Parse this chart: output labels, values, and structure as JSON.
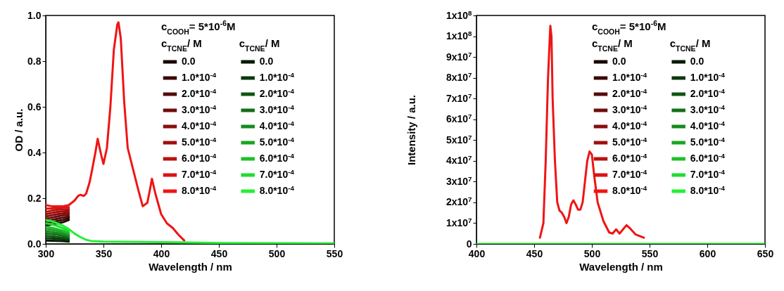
{
  "chart_data": [
    {
      "type": "line",
      "xlabel": "Wavelength / nm",
      "ylabel": "OD / a.u.",
      "legend_title": "c$_{TCNE}$/ M",
      "legend": "top right",
      "annotations": [
        "c$_{COOH}$= 5*10$^{-6}$M"
      ],
      "xlim": [
        300,
        550
      ],
      "xticks": [
        300,
        350,
        400,
        450,
        500,
        550
      ],
      "ylim": [
        0,
        1
      ],
      "yticks": [
        {
          "value": 0,
          "label": "0.0"
        },
        0.2,
        0.4,
        0.6,
        0.8,
        {
          "value": 1,
          "label": "1.0"
        }
      ],
      "x": [
        300,
        305,
        310,
        315,
        320,
        325,
        328,
        330,
        333,
        335,
        338,
        340,
        343,
        345,
        348,
        350,
        353,
        356,
        359,
        362,
        363,
        365,
        368,
        371,
        375,
        380,
        384,
        388,
        390,
        392,
        395,
        400,
        405,
        410,
        415,
        420
      ],
      "series": [
        {
          "name": "0.0",
          "color": "#1a0505",
          "x": [
            300,
            305,
            310,
            315,
            320
          ],
          "values": [
            0.08,
            0.085,
            0.09,
            0.095,
            0.105
          ]
        },
        {
          "name": "1.0*10$^{-4}$",
          "color": "#3a0808",
          "x": [
            300,
            305,
            310,
            315,
            320
          ],
          "values": [
            0.09,
            0.095,
            0.1,
            0.105,
            0.113
          ]
        },
        {
          "name": "2.0*10$^{-4}$",
          "color": "#550a0a",
          "x": [
            300,
            305,
            310,
            315,
            320
          ],
          "values": [
            0.1,
            0.105,
            0.11,
            0.115,
            0.12
          ]
        },
        {
          "name": "3.0*10$^{-4}$",
          "color": "#6e0c0c",
          "x": [
            300,
            305,
            310,
            315,
            320
          ],
          "values": [
            0.11,
            0.115,
            0.12,
            0.125,
            0.128
          ]
        },
        {
          "name": "4.0*10$^{-4}$",
          "color": "#880e0e",
          "x": [
            300,
            305,
            310,
            315,
            320
          ],
          "values": [
            0.12,
            0.125,
            0.13,
            0.133,
            0.136
          ]
        },
        {
          "name": "5.0*10$^{-4}$",
          "color": "#a00f0f",
          "x": [
            300,
            305,
            310,
            315,
            320
          ],
          "values": [
            0.13,
            0.135,
            0.14,
            0.142,
            0.144
          ]
        },
        {
          "name": "6.0*10$^{-4}$",
          "color": "#bb1010",
          "x": [
            300,
            305,
            310,
            315,
            320
          ],
          "values": [
            0.14,
            0.145,
            0.15,
            0.151,
            0.152
          ]
        },
        {
          "name": "7.0*10$^{-4}$",
          "color": "#d81212",
          "x": [
            300,
            305,
            310,
            315,
            320
          ],
          "values": [
            0.155,
            0.155,
            0.157,
            0.159,
            0.161
          ]
        },
        {
          "name": "8.0*10$^{-4}$",
          "color": "#f01414",
          "values": [
            0.17,
            0.165,
            0.165,
            0.165,
            0.17,
            0.19,
            0.21,
            0.215,
            0.21,
            0.22,
            0.27,
            0.32,
            0.4,
            0.46,
            0.39,
            0.35,
            0.42,
            0.6,
            0.85,
            0.96,
            0.97,
            0.9,
            0.62,
            0.42,
            0.34,
            0.24,
            0.165,
            0.18,
            0.23,
            0.285,
            0.22,
            0.13,
            0.09,
            0.07,
            0.04,
            0.015
          ]
        },
        {
          "name": "0.0",
          "color": "#051a05",
          "x": [
            300,
            305,
            310,
            315,
            320
          ],
          "values": [
            0.015,
            0.014,
            0.013,
            0.012,
            0.01
          ]
        },
        {
          "name": "1.0*10$^{-4}$",
          "color": "#0a380c",
          "x": [
            300,
            305,
            310,
            315,
            320
          ],
          "values": [
            0.025,
            0.024,
            0.022,
            0.02,
            0.017
          ]
        },
        {
          "name": "2.0*10$^{-4}$",
          "color": "#0d5512",
          "x": [
            300,
            305,
            310,
            315,
            320
          ],
          "values": [
            0.035,
            0.033,
            0.03,
            0.027,
            0.023
          ]
        },
        {
          "name": "3.0*10$^{-4}$",
          "color": "#127018",
          "x": [
            300,
            305,
            310,
            315,
            320
          ],
          "values": [
            0.045,
            0.043,
            0.04,
            0.035,
            0.03
          ]
        },
        {
          "name": "4.0*10$^{-4}$",
          "color": "#168a1e",
          "x": [
            300,
            305,
            310,
            315,
            320
          ],
          "values": [
            0.055,
            0.052,
            0.048,
            0.043,
            0.036
          ]
        },
        {
          "name": "5.0*10$^{-4}$",
          "color": "#1aa524",
          "x": [
            300,
            305,
            310,
            315,
            320
          ],
          "values": [
            0.065,
            0.062,
            0.057,
            0.05,
            0.042
          ]
        },
        {
          "name": "6.0*10$^{-4}$",
          "color": "#1cc12a",
          "x": [
            300,
            305,
            310,
            315,
            320
          ],
          "values": [
            0.075,
            0.071,
            0.065,
            0.058,
            0.048
          ]
        },
        {
          "name": "7.0*10$^{-4}$",
          "color": "#1edc30",
          "x": [
            300,
            305,
            310,
            315,
            320
          ],
          "values": [
            0.09,
            0.086,
            0.078,
            0.069,
            0.056
          ]
        },
        {
          "name": "8.0*10$^{-4}$",
          "color": "#22f035",
          "x": [
            300,
            305,
            310,
            315,
            320,
            325,
            330,
            335,
            340,
            350,
            400,
            450,
            550
          ],
          "values": [
            0.105,
            0.1,
            0.09,
            0.08,
            0.065,
            0.045,
            0.03,
            0.018,
            0.012,
            0.01,
            0.008,
            0.004,
            0.002
          ]
        }
      ]
    },
    {
      "type": "line",
      "xlabel": "Wavelength / nm",
      "ylabel": "Intensity / a.u.",
      "legend_title": "c$_{TCNE}$/ M",
      "legend": "top right",
      "annotations": [
        "c$_{COOH}$= 5*10$^{-6}$M"
      ],
      "xlim": [
        400,
        650
      ],
      "xticks": [
        400,
        450,
        500,
        550,
        600,
        650
      ],
      "ylim": [
        0,
        110000000
      ],
      "yticks": [
        0,
        {
          "value": 10000000,
          "label": "1x10$^{7}$"
        },
        {
          "value": 20000000,
          "label": "2x10$^{7}$"
        },
        {
          "value": 30000000,
          "label": "3x10$^{7}$"
        },
        {
          "value": 40000000,
          "label": "4x10$^{7}$"
        },
        {
          "value": 50000000,
          "label": "5x10$^{7}$"
        },
        {
          "value": 60000000,
          "label": "6x10$^{7}$"
        },
        {
          "value": 70000000,
          "label": "7x10$^{7}$"
        },
        {
          "value": 80000000,
          "label": "8x10$^{7}$"
        },
        {
          "value": 90000000,
          "label": "9x10$^{7}$"
        },
        {
          "value": 100000000,
          "label": "1x10$^{8}$"
        },
        {
          "value": 110000000,
          "label": "1x10$^{8}$"
        }
      ],
      "series": [
        {
          "name": "0.0",
          "color": "#1a0505"
        },
        {
          "name": "1.0*10$^{-4}$",
          "color": "#3a0808"
        },
        {
          "name": "2.0*10$^{-4}$",
          "color": "#550a0a"
        },
        {
          "name": "3.0*10$^{-4}$",
          "color": "#6e0c0c"
        },
        {
          "name": "4.0*10$^{-4}$",
          "color": "#880e0e"
        },
        {
          "name": "5.0*10$^{-4}$",
          "color": "#a00f0f"
        },
        {
          "name": "6.0*10$^{-4}$",
          "color": "#bb1010"
        },
        {
          "name": "7.0*10$^{-4}$",
          "color": "#d81212"
        },
        {
          "name": "8.0*10$^{-4}$",
          "color": "#f01414",
          "x": [
            455,
            458,
            460,
            462,
            464,
            465,
            466,
            468,
            470,
            472,
            474,
            476,
            478,
            480,
            482,
            484,
            486,
            488,
            490,
            492,
            494,
            496,
            498,
            500,
            502,
            505,
            510,
            515,
            518,
            521,
            524,
            527,
            530,
            533,
            538,
            545
          ],
          "values": [
            3000000,
            10000000,
            40000000,
            80000000,
            105000000,
            100000000,
            70000000,
            40000000,
            20000000,
            16000000,
            15000000,
            13000000,
            10000000,
            13000000,
            19000000,
            21000000,
            19000000,
            16500000,
            16500000,
            20000000,
            30000000,
            40000000,
            44500000,
            43000000,
            33000000,
            20000000,
            11000000,
            5500000,
            5000000,
            7000000,
            5000000,
            7000000,
            9000000,
            7500000,
            4500000,
            3000000
          ]
        },
        {
          "name": "0.0",
          "color": "#051a05"
        },
        {
          "name": "1.0*10$^{-4}$",
          "color": "#0a380c"
        },
        {
          "name": "2.0*10$^{-4}$",
          "color": "#0d5512"
        },
        {
          "name": "3.0*10$^{-4}$",
          "color": "#127018"
        },
        {
          "name": "4.0*10$^{-4}$",
          "color": "#168a1e"
        },
        {
          "name": "5.0*10$^{-4}$",
          "color": "#1aa524"
        },
        {
          "name": "6.0*10$^{-4}$",
          "color": "#1cc12a"
        },
        {
          "name": "7.0*10$^{-4}$",
          "color": "#1edc30"
        },
        {
          "name": "8.0*10$^{-4}$",
          "color": "#22f035",
          "x": [
            400,
            650
          ],
          "values": [
            0,
            0
          ]
        }
      ]
    }
  ]
}
